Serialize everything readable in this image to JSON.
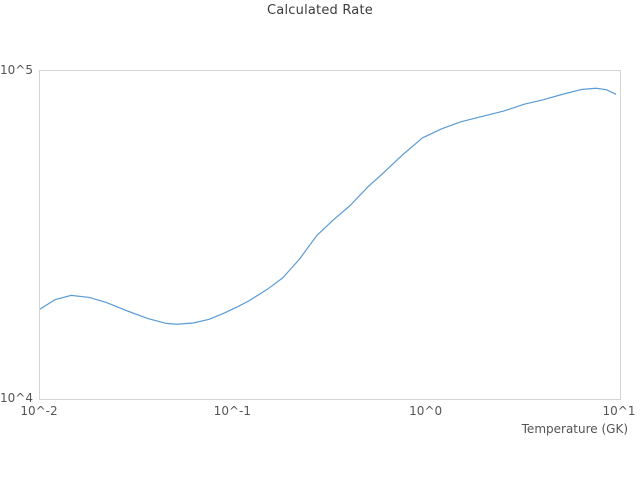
{
  "chart_data": {
    "type": "line",
    "title": "Calculated Rate",
    "xlabel": "Temperature (GK)",
    "ylabel": "",
    "x_scale": "log",
    "y_scale": "log",
    "xlim": [
      0.01,
      10
    ],
    "ylim": [
      10000,
      100000
    ],
    "grid": false,
    "legend_visible": false,
    "line_color": "#5b9bd5",
    "border_color": "#d4d4d4",
    "x_ticks": [
      {
        "label": "10^-2",
        "value": 0.01
      },
      {
        "label": "10^-1",
        "value": 0.1
      },
      {
        "label": "10^0",
        "value": 1
      },
      {
        "label": "10^1",
        "value": 10
      }
    ],
    "y_ticks": [
      {
        "label": "10^4",
        "value": 10000
      },
      {
        "label": "10^5",
        "value": 100000
      }
    ],
    "series": [
      {
        "name": "Calculated Rate",
        "x": [
          0.01,
          0.012,
          0.0145,
          0.018,
          0.022,
          0.028,
          0.036,
          0.045,
          0.051,
          0.062,
          0.075,
          0.09,
          0.105,
          0.12,
          0.15,
          0.18,
          0.22,
          0.27,
          0.33,
          0.4,
          0.5,
          0.6,
          0.75,
          0.95,
          1.2,
          1.5,
          1.9,
          2.5,
          3.2,
          4.0,
          5.0,
          6.3,
          7.5,
          8.5,
          9.5
        ],
        "y": [
          18800,
          20100,
          20700,
          20400,
          19700,
          18600,
          17600,
          17000,
          16900,
          17050,
          17500,
          18300,
          19100,
          19900,
          21600,
          23400,
          26700,
          31500,
          35200,
          38800,
          44500,
          49000,
          55500,
          62500,
          66700,
          70000,
          72500,
          75500,
          79200,
          81700,
          84800,
          87800,
          88600,
          87700,
          85000
        ]
      }
    ]
  }
}
